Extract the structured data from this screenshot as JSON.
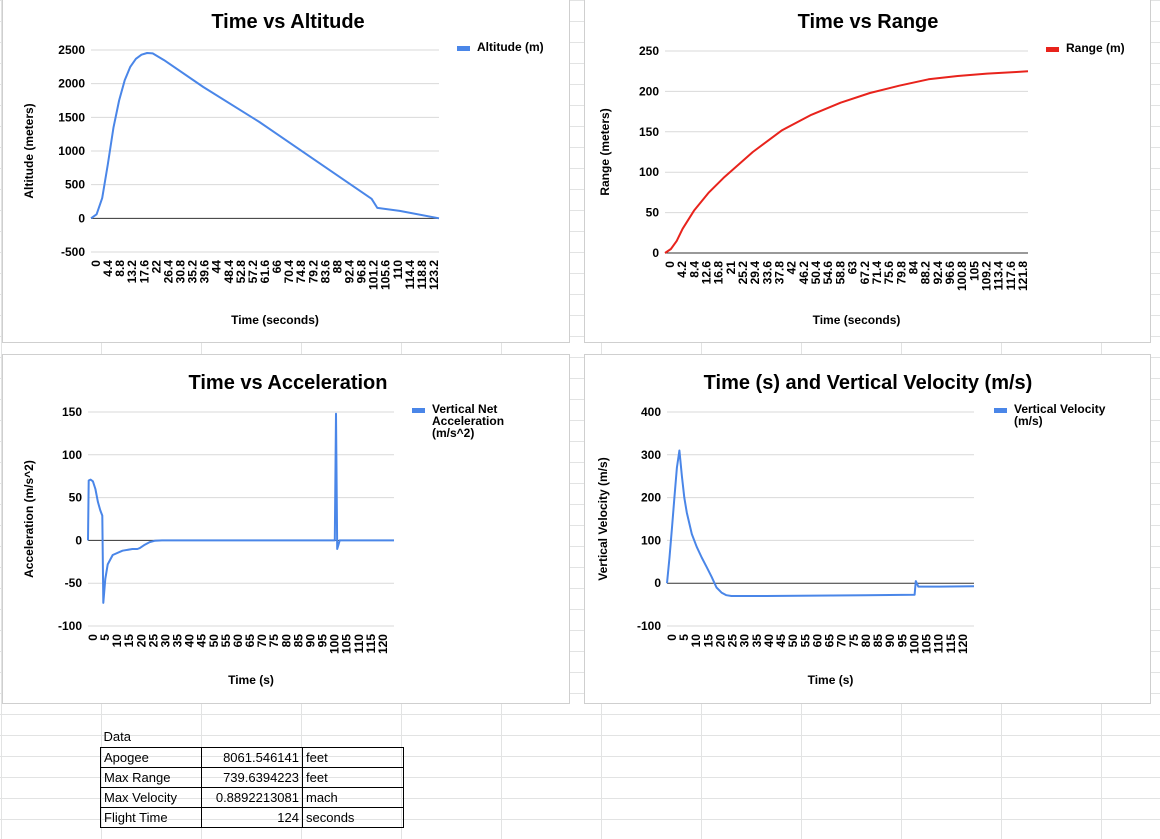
{
  "chart_data": [
    {
      "type": "line",
      "title": "Time vs Altitude",
      "xlabel": "Time (seconds)",
      "ylabel": "Altitude (meters)",
      "x": [
        0,
        2,
        4,
        6,
        8,
        10,
        12,
        14,
        16,
        18,
        20,
        22,
        26,
        40,
        60,
        80,
        100,
        102,
        110,
        124
      ],
      "series": [
        {
          "name": "Altitude (m)",
          "color": "#4a86e8",
          "values": [
            0,
            60,
            300,
            800,
            1350,
            1750,
            2050,
            2250,
            2370,
            2430,
            2455,
            2450,
            2350,
            1950,
            1430,
            860,
            290,
            155,
            110,
            0
          ]
        }
      ],
      "ylim": [
        -500,
        2500
      ],
      "yticks": [
        -500,
        0,
        500,
        1000,
        1500,
        2000,
        2500
      ],
      "xlim": [
        0,
        124
      ],
      "xticks": [
        "0",
        "4.4",
        "8.8",
        "13.2",
        "17.6",
        "22",
        "26.4",
        "30.8",
        "35.2",
        "39.6",
        "44",
        "48.4",
        "52.8",
        "57.2",
        "61.6",
        "66",
        "70.4",
        "74.8",
        "79.2",
        "83.6",
        "88",
        "92.4",
        "96.8",
        "101.2",
        "105.6",
        "110",
        "114.4",
        "118.8",
        "123.2"
      ],
      "legend": "right"
    },
    {
      "type": "line",
      "title": "Time vs Range",
      "xlabel": "Time (seconds)",
      "ylabel": "Range (meters)",
      "x": [
        0,
        2,
        4,
        6,
        10,
        15,
        20,
        30,
        40,
        50,
        60,
        70,
        80,
        90,
        100,
        110,
        120,
        124
      ],
      "series": [
        {
          "name": "Range (m)",
          "color": "#e8231c",
          "values": [
            0,
            5,
            15,
            30,
            53,
            75,
            93,
            125,
            152,
            171,
            186,
            198,
            207,
            215,
            219,
            222,
            224,
            225
          ]
        }
      ],
      "ylim": [
        0,
        250
      ],
      "yticks": [
        0,
        50,
        100,
        150,
        200,
        250
      ],
      "xlim": [
        0,
        124
      ],
      "xticks": [
        "0",
        "4.2",
        "8.4",
        "12.6",
        "16.8",
        "21",
        "25.2",
        "29.4",
        "33.6",
        "37.8",
        "42",
        "46.2",
        "50.4",
        "54.6",
        "58.8",
        "63",
        "67.2",
        "71.4",
        "75.6",
        "79.8",
        "84",
        "88.2",
        "92.4",
        "96.6",
        "100.8",
        "105",
        "109.2",
        "113.4",
        "117.6",
        "121.8"
      ],
      "legend": "right"
    },
    {
      "type": "line",
      "title": "Time vs Acceleration",
      "xlabel": "Time (s)",
      "ylabel": "Acceleration (m/s^2)",
      "x": [
        0,
        0.3,
        1,
        2,
        3,
        4,
        5,
        5.8,
        6.2,
        7,
        8,
        10,
        14,
        18,
        20,
        21,
        23,
        25,
        27,
        30,
        40,
        60,
        80,
        100,
        100.5,
        101,
        101.5,
        102,
        102.5,
        110,
        124
      ],
      "series": [
        {
          "name": "Vertical Net Acceleration (m/s^2)",
          "color": "#4a86e8",
          "values": [
            0,
            70,
            71,
            69,
            60,
            45,
            35,
            29,
            -73,
            -45,
            -28,
            -17,
            -12,
            -10,
            -10,
            -9,
            -5,
            -2,
            -0.5,
            0,
            0,
            0,
            0,
            0,
            148,
            -10,
            -5,
            0,
            0,
            0,
            0
          ]
        }
      ],
      "ylim": [
        -100,
        150
      ],
      "yticks": [
        -100,
        -50,
        0,
        50,
        100,
        150
      ],
      "xlim": [
        0,
        124
      ],
      "xticks": [
        "0",
        "5",
        "10",
        "15",
        "20",
        "25",
        "30",
        "35",
        "40",
        "45",
        "50",
        "55",
        "60",
        "65",
        "70",
        "75",
        "80",
        "85",
        "90",
        "95",
        "100",
        "105",
        "110",
        "115",
        "120"
      ],
      "legend": "right"
    },
    {
      "type": "line",
      "title": "Time (s) and Vertical Velocity (m/s)",
      "xlabel": "Time (s)",
      "ylabel": "Vertical Velocity (m/s)",
      "x": [
        0,
        1,
        2,
        3,
        4,
        5,
        6,
        7,
        8,
        10,
        12,
        14,
        16,
        18,
        20,
        22,
        24,
        26,
        28,
        40,
        60,
        80,
        100,
        100.5,
        101.5,
        110,
        124
      ],
      "series": [
        {
          "name": "Vertical Velocity (m/s)",
          "color": "#4a86e8",
          "values": [
            0,
            60,
            130,
            200,
            270,
            310,
            250,
            200,
            165,
            115,
            85,
            60,
            38,
            15,
            -10,
            -22,
            -28,
            -30,
            -30,
            -30,
            -29,
            -28,
            -27,
            5,
            -8,
            -8,
            -7
          ]
        }
      ],
      "ylim": [
        -100,
        400
      ],
      "yticks": [
        -100,
        0,
        100,
        200,
        300,
        400
      ],
      "xlim": [
        0,
        124
      ],
      "xticks": [
        "0",
        "5",
        "10",
        "15",
        "20",
        "25",
        "30",
        "35",
        "40",
        "45",
        "50",
        "55",
        "60",
        "65",
        "70",
        "75",
        "80",
        "85",
        "90",
        "95",
        "100",
        "105",
        "110",
        "115",
        "120"
      ],
      "legend": "right"
    }
  ],
  "table": {
    "header": "Data",
    "rows": [
      {
        "label": "Apogee",
        "value": "8061.546141",
        "unit": "feet"
      },
      {
        "label": "Max Range",
        "value": "739.6394223",
        "unit": "feet"
      },
      {
        "label": "Max Velocity",
        "value": "0.8892213081",
        "unit": "mach"
      },
      {
        "label": "Flight Time",
        "value": "124",
        "unit": "seconds"
      }
    ]
  }
}
